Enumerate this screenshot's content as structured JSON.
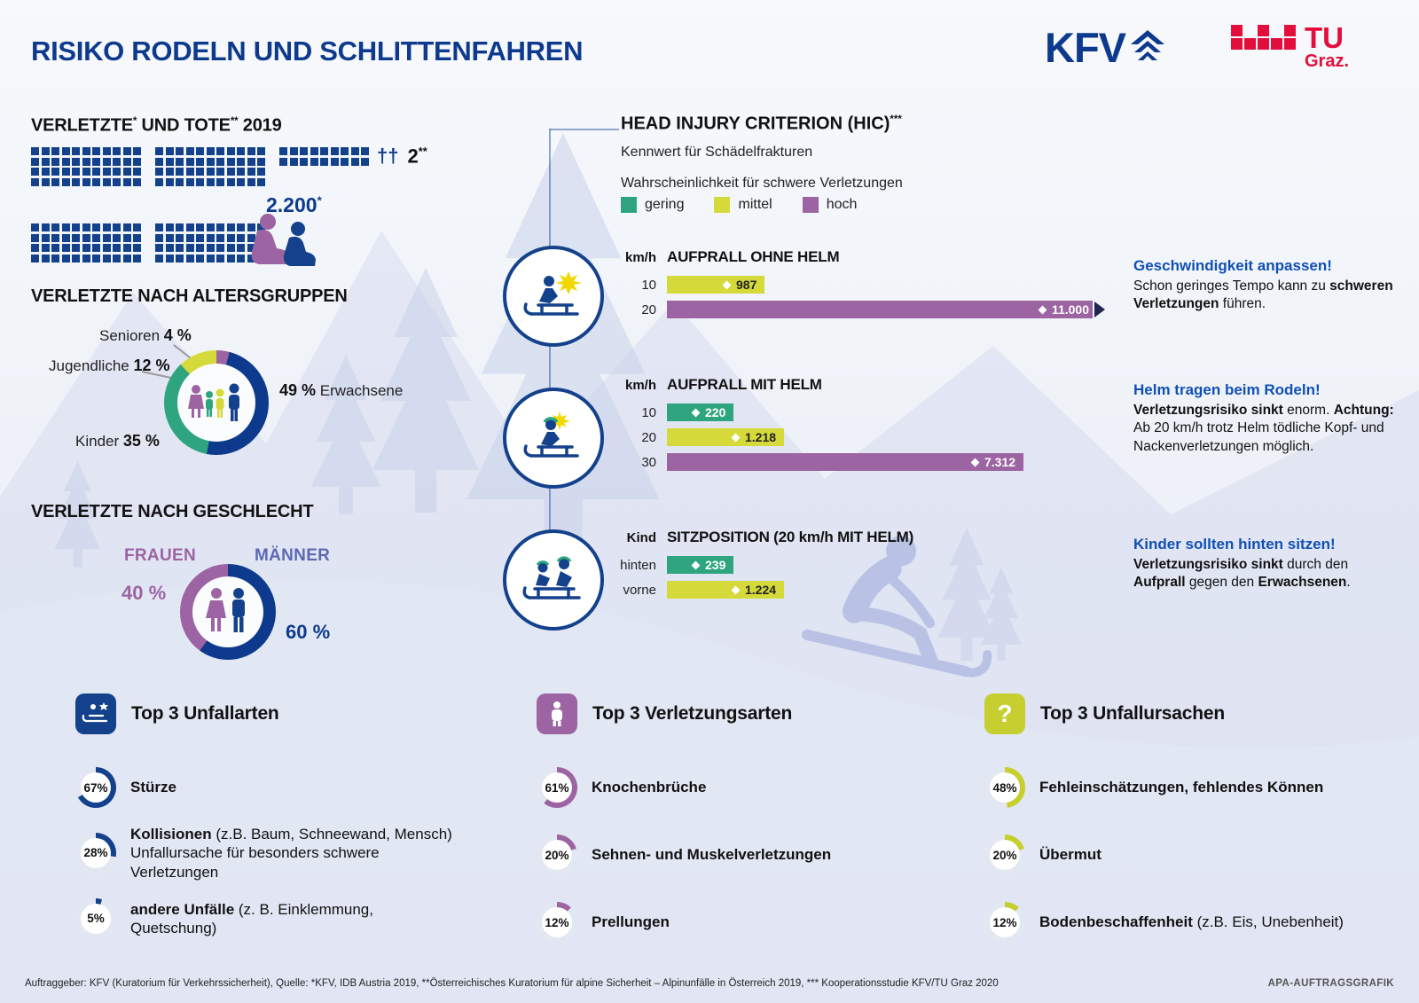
{
  "header": {
    "title": "RISIKO RODELN UND SCHLITTENFAHREN",
    "kfv_logo": "KFV",
    "tu_logo_top": "TU",
    "tu_logo_bottom": "Graz."
  },
  "palette": {
    "dark_blue": "#0d3a8d",
    "blue": "#14418c",
    "purple": "#9c64a2",
    "green": "#2ea57f",
    "yellow": "#d5da3a",
    "note_blue": "#1050b4",
    "tu_red": "#e30e3c",
    "silhouette": "#c9d1ea"
  },
  "casualties": {
    "title_1": "VERLETZTE",
    "sup_1": "*",
    "title_2": " UND TOTE",
    "sup_2": "**",
    "title_3": " 2019",
    "injured_value": "2.200",
    "injured_sup": "*",
    "deaths_symbol": "††",
    "deaths_value": "2",
    "deaths_sup": "**",
    "waffle_blocks": [
      {
        "cols": 11,
        "rows": 4
      },
      {
        "cols": 11,
        "rows": 4
      },
      {
        "cols": 9,
        "rows": 2
      },
      {
        "cols": 11,
        "rows": 4
      },
      {
        "cols": 11,
        "rows": 4
      }
    ]
  },
  "age_groups": {
    "title": "VERLETZTE NACH ALTERSGRUPPEN",
    "donut": [
      {
        "label": "Senioren",
        "value": 4,
        "display": "4 %",
        "color": "#9c64a2"
      },
      {
        "label": "Erwachsene",
        "value": 49,
        "display": "49 %",
        "color": "#0d3a8d"
      },
      {
        "label": "Kinder",
        "value": 35,
        "display": "35 %",
        "color": "#2ea57f"
      },
      {
        "label": "Jugendliche",
        "value": 12,
        "display": "12 %",
        "color": "#d5da3a"
      }
    ]
  },
  "gender": {
    "title": "VERLETZTE NACH GESCHLECHT",
    "donut": [
      {
        "label": "MÄNNER",
        "value": 60,
        "display": "60 %",
        "color": "#0d3a8d"
      },
      {
        "label": "FRAUEN",
        "value": 40,
        "display": "40 %",
        "color": "#9c64a2"
      }
    ]
  },
  "hic": {
    "title": "HEAD INJURY CRITERION (HIC)",
    "title_sup": "***",
    "subtitle": "Kennwert für Schädelfrakturen",
    "legend_title": "Wahrscheinlichkeit für schwere Verletzungen",
    "legend": [
      {
        "label": "gering",
        "color": "#2ea57f"
      },
      {
        "label": "mittel",
        "color": "#d5da3a"
      },
      {
        "label": "hoch",
        "color": "#9c64a2"
      }
    ],
    "charts": [
      {
        "axis_label": "km/h",
        "title": "AUFPRALL OHNE HELM",
        "bars": [
          {
            "label": "10",
            "value": "987",
            "level": "mittel",
            "width_pct": 11
          },
          {
            "label": "20",
            "value": "11.000",
            "level": "hoch",
            "width_pct": 96,
            "overflow": true
          }
        ],
        "note": {
          "title": "Geschwindigkeit anpassen!",
          "body": [
            {
              "t": "Schon geringes Tempo kann zu "
            },
            {
              "t": "schweren Verletzungen",
              "b": true
            },
            {
              "t": " führen."
            }
          ]
        }
      },
      {
        "axis_label": "km/h",
        "title": "AUFPRALL MIT HELM",
        "bars": [
          {
            "label": "10",
            "value": "220",
            "level": "gering",
            "width_pct": 4
          },
          {
            "label": "20",
            "value": "1.218",
            "level": "mittel",
            "width_pct": 13
          },
          {
            "label": "30",
            "value": "7.312",
            "level": "hoch",
            "width_pct": 67
          }
        ],
        "note": {
          "title": "Helm tragen beim Rodeln!",
          "body": [
            {
              "t": "Verletzungsrisiko sinkt",
              "b": true
            },
            {
              "t": " enorm. "
            },
            {
              "t": "Achtung:",
              "b": true
            },
            {
              "t": " Ab 20 km/h trotz Helm tödliche Kopf- und Nackenverletzungen möglich."
            }
          ]
        }
      },
      {
        "axis_label": "Kind",
        "title": "SITZPOSITION (20 km/h MIT HELM)",
        "bars": [
          {
            "label": "hinten",
            "value": "239",
            "level": "gering",
            "width_pct": 4
          },
          {
            "label": "vorne",
            "value": "1.224",
            "level": "mittel",
            "width_pct": 13
          }
        ],
        "note": {
          "title": "Kinder sollten hinten sitzen!",
          "body": [
            {
              "t": "Verletzungsrisiko sinkt",
              "b": true
            },
            {
              "t": " durch den "
            },
            {
              "t": "Aufprall",
              "b": true
            },
            {
              "t": " gegen den "
            },
            {
              "t": "Erwachsenen",
              "b": true
            },
            {
              "t": "."
            }
          ]
        }
      }
    ]
  },
  "top3": [
    {
      "title": "Top 3 Unfallarten",
      "color": "#14418c",
      "icon": "sled-accident-icon",
      "items": [
        {
          "pct": "67%",
          "value": 67,
          "bold": "Stürze",
          "rest": ""
        },
        {
          "pct": "28%",
          "value": 28,
          "bold": "Kollisionen",
          "rest": " (z.B. Baum, Schneewand, Mensch) Unfallursache für besonders schwere Verletzungen"
        },
        {
          "pct": "5%",
          "value": 5,
          "bold": "andere Unfälle",
          "rest": " (z. B. Einklemmung, Quetschung)"
        }
      ]
    },
    {
      "title": "Top 3 Verletzungsarten",
      "color": "#9c64a2",
      "icon": "injured-person-icon",
      "items": [
        {
          "pct": "61%",
          "value": 61,
          "bold": "Knochenbrüche",
          "rest": ""
        },
        {
          "pct": "20%",
          "value": 20,
          "bold": "Sehnen- und Muskelverletzungen",
          "rest": ""
        },
        {
          "pct": "12%",
          "value": 12,
          "bold": "Prellungen",
          "rest": ""
        }
      ]
    },
    {
      "title": "Top 3 Unfallursachen",
      "color": "#c6cf2f",
      "icon": "question-mark-icon",
      "question_mark": "?",
      "items": [
        {
          "pct": "48%",
          "value": 48,
          "bold": "Fehleinschätzungen, fehlendes Können",
          "rest": ""
        },
        {
          "pct": "20%",
          "value": 20,
          "bold": "Übermut",
          "rest": ""
        },
        {
          "pct": "12%",
          "value": 12,
          "bold": "Bodenbeschaffenheit",
          "rest": " (z.B. Eis, Unebenheit)"
        }
      ]
    }
  ],
  "footer": {
    "left": "Auftraggeber: KFV (Kuratorium für Verkehrssicherheit), Quelle: *KFV, IDB Austria 2019, **Österreichisches Kuratorium für alpine Sicherheit – Alpinunfälle in Österreich 2019, *** Kooperationsstudie KFV/TU Graz 2020",
    "right": "APA-AUFTRAGSGRAFIK"
  },
  "chart_data": [
    {
      "type": "pictogram",
      "title": "Verletzte und Tote 2019",
      "injured": 2200,
      "deaths": 2
    },
    {
      "type": "pie",
      "title": "Verletzte nach Altersgruppen",
      "labels": [
        "Erwachsene",
        "Kinder",
        "Jugendliche",
        "Senioren"
      ],
      "values": [
        49,
        35,
        12,
        4
      ],
      "unit": "%"
    },
    {
      "type": "pie",
      "title": "Verletzte nach Geschlecht",
      "labels": [
        "Männer",
        "Frauen"
      ],
      "values": [
        60,
        40
      ],
      "unit": "%"
    },
    {
      "type": "bar",
      "title": "HIC Aufprall ohne Helm",
      "categories": [
        "10 km/h",
        "20 km/h"
      ],
      "values": [
        987,
        11000
      ],
      "risk": [
        "mittel",
        "hoch"
      ]
    },
    {
      "type": "bar",
      "title": "HIC Aufprall mit Helm",
      "categories": [
        "10 km/h",
        "20 km/h",
        "30 km/h"
      ],
      "values": [
        220,
        1218,
        7312
      ],
      "risk": [
        "gering",
        "mittel",
        "hoch"
      ]
    },
    {
      "type": "bar",
      "title": "HIC Sitzposition Kind (20 km/h mit Helm)",
      "categories": [
        "hinten",
        "vorne"
      ],
      "values": [
        239,
        1224
      ],
      "risk": [
        "gering",
        "mittel"
      ]
    },
    {
      "type": "pie",
      "title": "Top 3 Unfallarten",
      "labels": [
        "Stürze",
        "Kollisionen",
        "andere Unfälle"
      ],
      "values": [
        67,
        28,
        5
      ],
      "unit": "%"
    },
    {
      "type": "pie",
      "title": "Top 3 Verletzungsarten",
      "labels": [
        "Knochenbrüche",
        "Sehnen- und Muskelverletzungen",
        "Prellungen"
      ],
      "values": [
        61,
        20,
        12
      ],
      "unit": "%"
    },
    {
      "type": "pie",
      "title": "Top 3 Unfallursachen",
      "labels": [
        "Fehleinschätzungen, fehlendes Können",
        "Übermut",
        "Bodenbeschaffenheit"
      ],
      "values": [
        48,
        20,
        12
      ],
      "unit": "%"
    }
  ]
}
